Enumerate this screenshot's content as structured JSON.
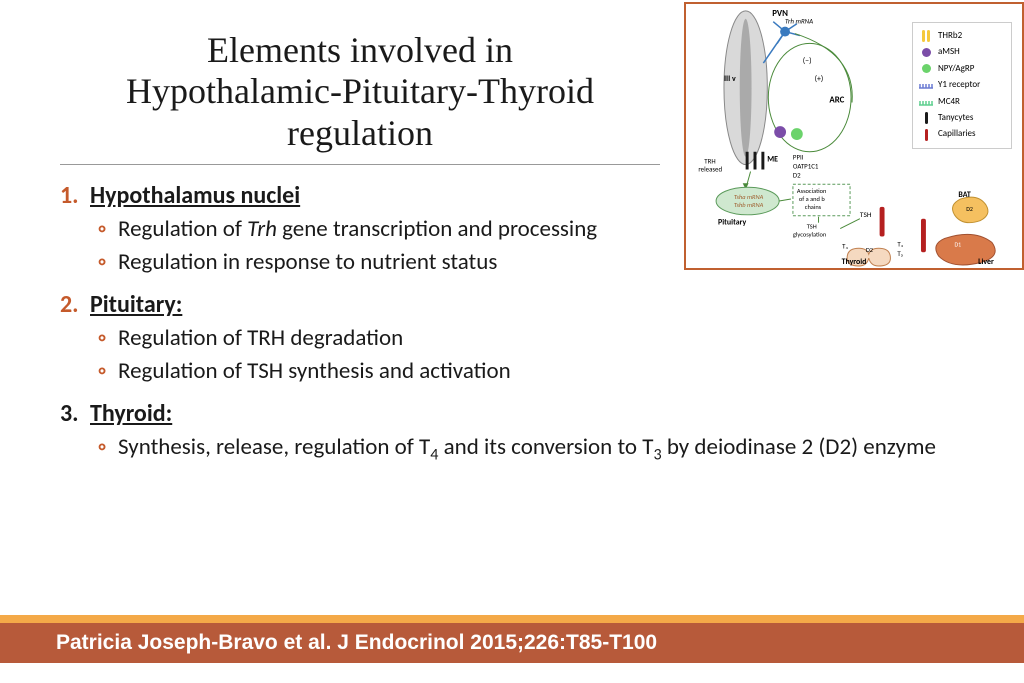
{
  "title_line1": "Elements involved in",
  "title_line2": "Hypothalamic-Pituitary-Thyroid",
  "title_line3": "regulation",
  "sections": [
    {
      "num": "1.",
      "num_color": "orange",
      "head": "Hypothalamus nuclei",
      "bullets_html": [
        "Regulation of <em class='ital'>Trh</em> gene transcription and processing",
        "Regulation in response to nutrient status"
      ]
    },
    {
      "num": "2.",
      "num_color": "orange",
      "head": "Pituitary:",
      "bullets_html": [
        "Regulation of TRH degradation",
        "Regulation of TSH synthesis and activation"
      ]
    },
    {
      "num": "3.",
      "num_color": "black",
      "head": "Thyroid:",
      "bullets_html": [
        "Synthesis, release, regulation of T<sub>4</sub> and its conversion to T<sub>3</sub> by deiodinase 2 (D2) enzyme"
      ]
    }
  ],
  "footer": {
    "stripe_top_color": "#f4a948",
    "stripe_main_color": "#b75a3a",
    "text": "Patricia Joseph-Bravo et al. J Endocrinol 2015;226:T85-T100",
    "text_color": "#ffffff"
  },
  "diagram": {
    "type": "biological-pathway",
    "border_color": "#c06030",
    "labels": {
      "pvn": "PVN",
      "trh_mrna": "Trh mRNA",
      "iii_v": "III v",
      "arc": "ARC",
      "me": "ME",
      "trh_released": "TRH released",
      "ppii": "PPII",
      "oatp": "OATP1C1",
      "d2": "D2",
      "tsha": "Tsha mRNA",
      "tshb": "Tshb mRNA",
      "pituitary": "Pituitary",
      "assoc": "Association of a and b chains",
      "tsh": "TSH",
      "tsh_glyc": "TSH glycosylation",
      "thyroid": "Thyroid",
      "t4": "T₄",
      "t3": "T₃",
      "d2_th": "D2",
      "bat": "BAT",
      "liver": "Liver",
      "d1": "D1",
      "plus": "(+)",
      "minus": "(−)"
    },
    "legend": [
      {
        "sym": "bars",
        "color": "#f5c93d",
        "label": "THRb2"
      },
      {
        "sym": "circle",
        "color": "#7b4da8",
        "label": "aMSH"
      },
      {
        "sym": "circle",
        "color": "#6bd36b",
        "label": "NPY/AgRP"
      },
      {
        "sym": "comb",
        "color": "#6b7bd3",
        "label": "Y1 receptor"
      },
      {
        "sym": "comb",
        "color": "#5fcf8f",
        "label": "MC4R"
      },
      {
        "sym": "bar",
        "color": "#1a1a1a",
        "label": "Tanycytes"
      },
      {
        "sym": "bar",
        "color": "#b52020",
        "label": "Capillaries"
      }
    ],
    "colors": {
      "neuron": "#3a7abf",
      "oval_fill": "#d9d9d9",
      "oval_stroke": "#888888",
      "arc_stroke": "#4a8a3a",
      "capillary": "#b52020",
      "tanycyte": "#1a1a1a",
      "pituitary_fill": "#cfe8cf",
      "pituitary_stroke": "#5a9a5a",
      "thyroid_fill": "#f5d9c0",
      "thyroid_stroke": "#c08050",
      "liver_fill": "#d97a4a",
      "bat_fill": "#f5c060",
      "arrow": "#4a8a3a",
      "dash_box": "#5a9a5a"
    }
  }
}
